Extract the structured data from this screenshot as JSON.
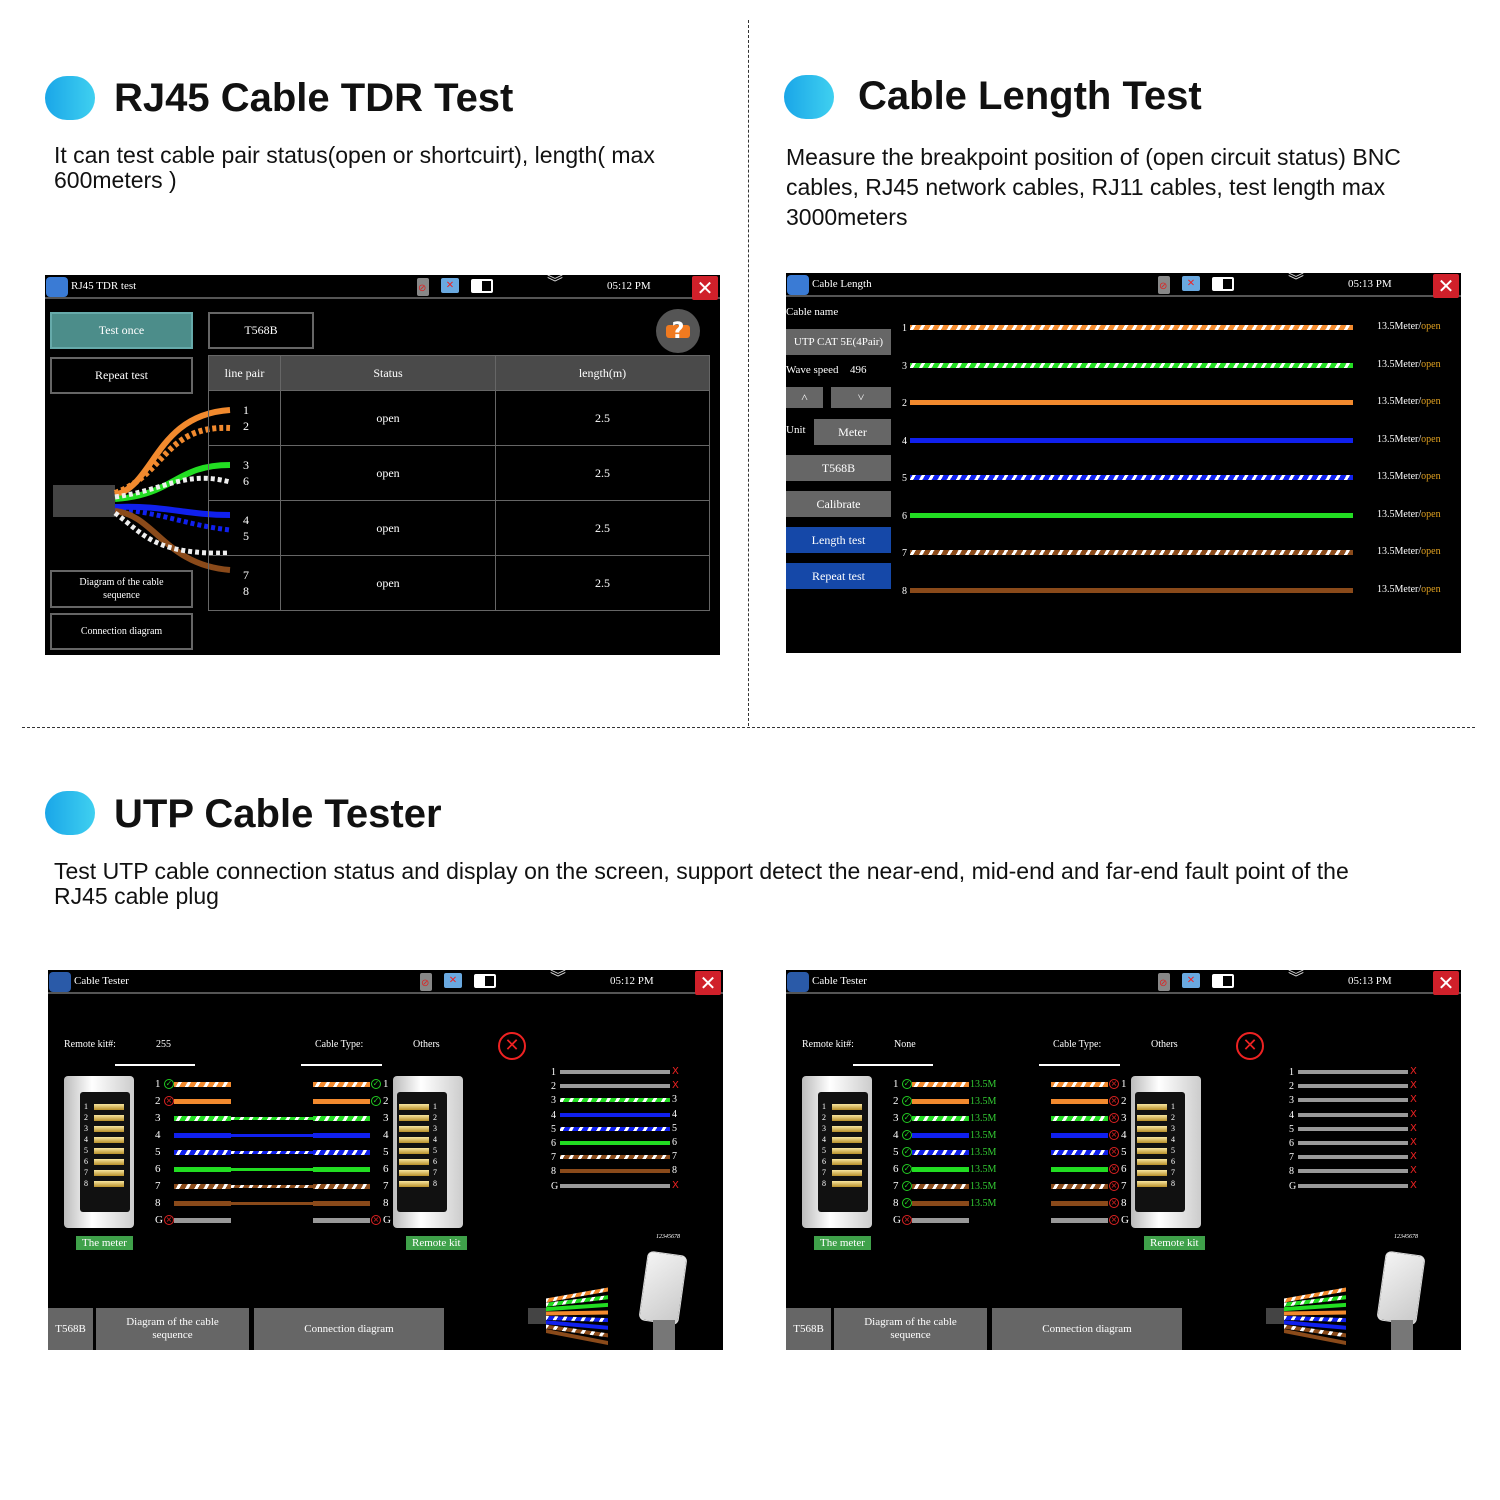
{
  "sections": [
    {
      "title": "RJ45 Cable TDR Test",
      "description": "It can test cable pair status(open or shortcuirt), length( max 600meters )"
    },
    {
      "title": "Cable Length Test",
      "description": "Measure the breakpoint position of (open circuit status) BNC cables, RJ45 network cables, RJ11 cables, test length max 3000meters"
    },
    {
      "title": "UTP Cable Tester",
      "description": "Test UTP cable connection status and display on the screen, support detect the near-end, mid-end and far-end fault point of the RJ45 cable plug"
    }
  ],
  "colors": {
    "accent": "#1aa6e8",
    "close": "#d0202a",
    "teal": "#4c8d8a",
    "blue_button": "#1548a8",
    "ok": "#22cc22",
    "fail": "#dd2222",
    "open": "#e0a020"
  },
  "wire_palette": {
    "1": {
      "color": "#f28a2e",
      "striped": true
    },
    "2": {
      "color": "#f28a2e",
      "striped": false
    },
    "3": {
      "color": "#22dd22",
      "striped": true
    },
    "4": {
      "color": "#1020ee",
      "striped": false
    },
    "5": {
      "color": "#1020ee",
      "striped": true
    },
    "6": {
      "color": "#22dd22",
      "striped": false
    },
    "7": {
      "color": "#8a4a1a",
      "striped": true
    },
    "8": {
      "color": "#8a4a1a",
      "striped": false
    },
    "G": {
      "color": "#999999",
      "striped": false
    }
  },
  "tdr": {
    "title": "RJ45 TDR test",
    "time": "05:12 PM",
    "close": "✕",
    "chevron": "︾",
    "test_once": "Test once",
    "standard": "T568B",
    "repeat_test": "Repeat test",
    "diagram": "Diagram of the cable sequence",
    "connection": "Connection diagram",
    "help": "?",
    "headers": [
      "line pair",
      "Status",
      "length(m)"
    ],
    "rows": [
      {
        "pair": [
          "1",
          "2"
        ],
        "status": "open",
        "length": "2.5"
      },
      {
        "pair": [
          "3",
          "6"
        ],
        "status": "open",
        "length": "2.5"
      },
      {
        "pair": [
          "4",
          "5"
        ],
        "status": "open",
        "length": "2.5"
      },
      {
        "pair": [
          "7",
          "8"
        ],
        "status": "open",
        "length": "2.5"
      }
    ]
  },
  "cable_length": {
    "title": "Cable Length",
    "time": "05:13 PM",
    "close": "✕",
    "chevron": "︾",
    "cable_name_label": "Cable name",
    "cable_name": "UTP CAT 5E(4Pair)",
    "wave_speed_label": "Wave speed",
    "wave_speed": "496",
    "up": "˄",
    "down": "˅",
    "unit_label": "Unit",
    "unit": "Meter",
    "standard": "T568B",
    "calibrate": "Calibrate",
    "length_test": "Length test",
    "repeat_test": "Repeat test",
    "rows": [
      {
        "wire": "1",
        "length": "13.5Meter/",
        "status": "open"
      },
      {
        "wire": "3",
        "length": "13.5Meter/",
        "status": "open"
      },
      {
        "wire": "2",
        "length": "13.5Meter/",
        "status": "open"
      },
      {
        "wire": "4",
        "length": "13.5Meter/",
        "status": "open"
      },
      {
        "wire": "5",
        "length": "13.5Meter/",
        "status": "open"
      },
      {
        "wire": "6",
        "length": "13.5Meter/",
        "status": "open"
      },
      {
        "wire": "7",
        "length": "13.5Meter/",
        "status": "open"
      },
      {
        "wire": "8",
        "length": "13.5Meter/",
        "status": "open"
      }
    ]
  },
  "testers": [
    {
      "title": "Cable Tester",
      "time": "05:12 PM",
      "close": "✕",
      "chevron": "︾",
      "remote_kit_label": "Remote kit#:",
      "remote_kit": "255",
      "cable_type_label": "Cable Type:",
      "cable_type": "Others",
      "meter_label": "The meter",
      "remote_label": "Remote kit",
      "standard": "T568B",
      "diagram": "Diagram of the cable sequence",
      "connection": "Connection diagram",
      "plug_number": "12345678",
      "pins": [
        {
          "pin": "1",
          "near": "ok",
          "far": "ok",
          "connected": false,
          "length": ""
        },
        {
          "pin": "2",
          "near": "fail",
          "far": "ok",
          "connected": false,
          "length": ""
        },
        {
          "pin": "3",
          "near": "none",
          "far": "none",
          "connected": true,
          "length": ""
        },
        {
          "pin": "4",
          "near": "none",
          "far": "none",
          "connected": true,
          "length": ""
        },
        {
          "pin": "5",
          "near": "none",
          "far": "none",
          "connected": true,
          "length": ""
        },
        {
          "pin": "6",
          "near": "none",
          "far": "none",
          "connected": true,
          "length": ""
        },
        {
          "pin": "7",
          "near": "none",
          "far": "none",
          "connected": true,
          "length": ""
        },
        {
          "pin": "8",
          "near": "none",
          "far": "none",
          "connected": true,
          "length": ""
        },
        {
          "pin": "G",
          "near": "fail",
          "far": "fail",
          "connected": false,
          "length": ""
        }
      ],
      "map": [
        {
          "pin": "1",
          "end": "X"
        },
        {
          "pin": "2",
          "end": "X"
        },
        {
          "pin": "3",
          "end": "3"
        },
        {
          "pin": "4",
          "end": "4"
        },
        {
          "pin": "5",
          "end": "5"
        },
        {
          "pin": "6",
          "end": "6"
        },
        {
          "pin": "7",
          "end": "7"
        },
        {
          "pin": "8",
          "end": "8"
        },
        {
          "pin": "G",
          "end": "X"
        }
      ]
    },
    {
      "title": "Cable Tester",
      "time": "05:13 PM",
      "close": "✕",
      "chevron": "︾",
      "remote_kit_label": "Remote kit#:",
      "remote_kit": "None",
      "cable_type_label": "Cable Type:",
      "cable_type": "Others",
      "meter_label": "The meter",
      "remote_label": "Remote kit",
      "standard": "T568B",
      "diagram": "Diagram of the cable sequence",
      "connection": "Connection diagram",
      "plug_number": "12345678",
      "pins": [
        {
          "pin": "1",
          "near": "ok",
          "far": "fail",
          "connected": false,
          "length": "13.5M"
        },
        {
          "pin": "2",
          "near": "ok",
          "far": "fail",
          "connected": false,
          "length": "13.5M"
        },
        {
          "pin": "3",
          "near": "ok",
          "far": "fail",
          "connected": false,
          "length": "13.5M"
        },
        {
          "pin": "4",
          "near": "ok",
          "far": "fail",
          "connected": false,
          "length": "13.5M"
        },
        {
          "pin": "5",
          "near": "ok",
          "far": "fail",
          "connected": false,
          "length": "13.5M"
        },
        {
          "pin": "6",
          "near": "ok",
          "far": "fail",
          "connected": false,
          "length": "13.5M"
        },
        {
          "pin": "7",
          "near": "ok",
          "far": "fail",
          "connected": false,
          "length": "13.5M"
        },
        {
          "pin": "8",
          "near": "ok",
          "far": "fail",
          "connected": false,
          "length": "13.5M"
        },
        {
          "pin": "G",
          "near": "fail",
          "far": "fail",
          "connected": false,
          "length": ""
        }
      ],
      "map": [
        {
          "pin": "1",
          "end": "X"
        },
        {
          "pin": "2",
          "end": "X"
        },
        {
          "pin": "3",
          "end": "X"
        },
        {
          "pin": "4",
          "end": "X"
        },
        {
          "pin": "5",
          "end": "X"
        },
        {
          "pin": "6",
          "end": "X"
        },
        {
          "pin": "7",
          "end": "X"
        },
        {
          "pin": "8",
          "end": "X"
        },
        {
          "pin": "G",
          "end": "X"
        }
      ]
    }
  ]
}
